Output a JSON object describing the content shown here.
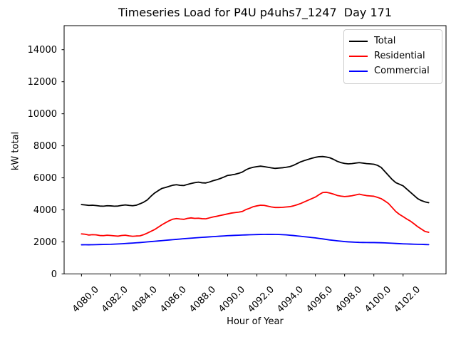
{
  "chart_data": {
    "type": "line",
    "title": "Timeseries Load for P4U p4uhs7_1247  Day 171",
    "xlabel": "Hour of Year",
    "ylabel": "kW total",
    "xlim": [
      4078.8125,
      4104.9375
    ],
    "ylim": [
      0,
      15500
    ],
    "grid": false,
    "legend_position": "upper right",
    "x_start": 4080.0,
    "x_step": 0.25,
    "n_points": 96,
    "xticks": [
      {
        "value": 4080,
        "label": "4080.0"
      },
      {
        "value": 4082,
        "label": "4082.0"
      },
      {
        "value": 4084,
        "label": "4084.0"
      },
      {
        "value": 4086,
        "label": "4086.0"
      },
      {
        "value": 4088,
        "label": "4088.0"
      },
      {
        "value": 4090,
        "label": "4090.0"
      },
      {
        "value": 4092,
        "label": "4092.0"
      },
      {
        "value": 4094,
        "label": "4094.0"
      },
      {
        "value": 4096,
        "label": "4096.0"
      },
      {
        "value": 4098,
        "label": "4098.0"
      },
      {
        "value": 4100,
        "label": "4100.0"
      },
      {
        "value": 4102,
        "label": "4102.0"
      }
    ],
    "yticks": [
      {
        "value": 0,
        "label": "0"
      },
      {
        "value": 2000,
        "label": "2000"
      },
      {
        "value": 4000,
        "label": "4000"
      },
      {
        "value": 6000,
        "label": "6000"
      },
      {
        "value": 8000,
        "label": "8000"
      },
      {
        "value": 10000,
        "label": "10000"
      },
      {
        "value": 12000,
        "label": "12000"
      },
      {
        "value": 14000,
        "label": "14000"
      }
    ],
    "series": [
      {
        "name": "Total",
        "color": "#000000",
        "values": [
          4330,
          4310,
          4280,
          4290,
          4270,
          4240,
          4230,
          4260,
          4250,
          4230,
          4240,
          4280,
          4310,
          4280,
          4260,
          4290,
          4380,
          4480,
          4620,
          4850,
          5050,
          5200,
          5340,
          5400,
          5470,
          5540,
          5570,
          5530,
          5520,
          5590,
          5650,
          5700,
          5730,
          5690,
          5680,
          5740,
          5820,
          5880,
          5960,
          6050,
          6150,
          6180,
          6220,
          6280,
          6360,
          6500,
          6600,
          6660,
          6700,
          6730,
          6700,
          6660,
          6620,
          6590,
          6610,
          6630,
          6660,
          6700,
          6780,
          6890,
          7000,
          7080,
          7150,
          7220,
          7280,
          7320,
          7330,
          7300,
          7250,
          7150,
          7030,
          6950,
          6900,
          6870,
          6890,
          6920,
          6950,
          6920,
          6890,
          6870,
          6850,
          6780,
          6650,
          6400,
          6150,
          5900,
          5700,
          5600,
          5500,
          5300,
          5100,
          4900,
          4700,
          4580,
          4500,
          4450
        ]
      },
      {
        "name": "Residential",
        "color": "#ff0000",
        "values": [
          2500,
          2480,
          2430,
          2450,
          2440,
          2400,
          2390,
          2420,
          2400,
          2380,
          2360,
          2400,
          2420,
          2380,
          2350,
          2370,
          2380,
          2450,
          2550,
          2660,
          2770,
          2920,
          3070,
          3200,
          3320,
          3420,
          3460,
          3430,
          3410,
          3470,
          3500,
          3470,
          3480,
          3450,
          3440,
          3500,
          3560,
          3600,
          3650,
          3700,
          3750,
          3800,
          3830,
          3860,
          3900,
          4020,
          4100,
          4200,
          4250,
          4290,
          4280,
          4230,
          4180,
          4150,
          4150,
          4160,
          4180,
          4200,
          4250,
          4320,
          4400,
          4500,
          4600,
          4700,
          4800,
          4950,
          5080,
          5100,
          5050,
          4980,
          4900,
          4860,
          4830,
          4850,
          4880,
          4930,
          4980,
          4930,
          4890,
          4870,
          4850,
          4780,
          4700,
          4560,
          4400,
          4150,
          3900,
          3720,
          3580,
          3430,
          3300,
          3130,
          2950,
          2800,
          2650,
          2600
        ]
      },
      {
        "name": "Commercial",
        "color": "#0000ff",
        "values": [
          1820,
          1822,
          1820,
          1825,
          1830,
          1838,
          1840,
          1846,
          1850,
          1862,
          1872,
          1886,
          1900,
          1915,
          1928,
          1945,
          1960,
          1980,
          2000,
          2020,
          2040,
          2060,
          2080,
          2100,
          2120,
          2140,
          2160,
          2180,
          2200,
          2218,
          2235,
          2252,
          2270,
          2285,
          2300,
          2315,
          2330,
          2345,
          2360,
          2375,
          2390,
          2400,
          2410,
          2420,
          2430,
          2438,
          2445,
          2452,
          2460,
          2465,
          2468,
          2470,
          2470,
          2468,
          2462,
          2452,
          2440,
          2420,
          2398,
          2375,
          2350,
          2325,
          2300,
          2275,
          2250,
          2220,
          2188,
          2155,
          2120,
          2095,
          2070,
          2045,
          2020,
          2005,
          1992,
          1980,
          1970,
          1965,
          1962,
          1960,
          1960,
          1955,
          1948,
          1940,
          1930,
          1918,
          1905,
          1892,
          1880,
          1872,
          1865,
          1858,
          1850,
          1845,
          1838,
          1830
        ]
      }
    ]
  }
}
